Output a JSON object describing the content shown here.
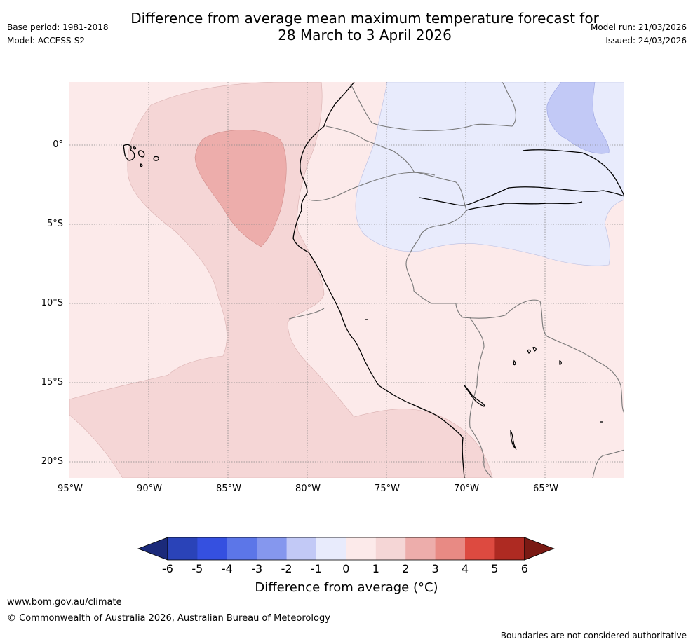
{
  "title": {
    "line1": "Difference from average mean maximum temperature forecast for",
    "line2": "28 March to 3 April 2026"
  },
  "meta": {
    "base_period": "Base period: 1981-2018",
    "model": "Model: ACCESS-S2",
    "model_run": "Model run: 21/03/2026",
    "issued": "Issued: 24/03/2026"
  },
  "axes": {
    "lat_labels": [
      "0°",
      "5°S",
      "10°S",
      "15°S",
      "20°S"
    ],
    "lon_labels": [
      "95°W",
      "90°W",
      "85°W",
      "80°W",
      "75°W",
      "70°W",
      "65°W"
    ]
  },
  "colorbar": {
    "ticks": [
      "-6",
      "-5",
      "-4",
      "-3",
      "-2",
      "-1",
      "0",
      "1",
      "2",
      "3",
      "4",
      "5",
      "6"
    ],
    "colors": [
      "#1b2a7a",
      "#2a43b8",
      "#3550e0",
      "#5c76e8",
      "#8597ee",
      "#c2c9f6",
      "#e8ebfc",
      "#fceaea",
      "#f5d6d6",
      "#edadab",
      "#e88a84",
      "#dd4a40",
      "#ae2a22",
      "#7a1a14"
    ],
    "label": "Difference from average (°C)"
  },
  "map_colors": {
    "anomaly_0_1": "#fceaea",
    "anomaly_1_2": "#f5d6d6",
    "anomaly_2_3": "#edadab",
    "anomaly_neg1_0": "#e8ebfc",
    "anomaly_neg2_neg1": "#c2c9f6"
  },
  "footer": {
    "url": "www.bom.gov.au/climate",
    "copyright": "© Commonwealth of Australia 2026, Australian Bureau of Meteorology",
    "disclaimer": "Boundaries are not considered authoritative"
  }
}
